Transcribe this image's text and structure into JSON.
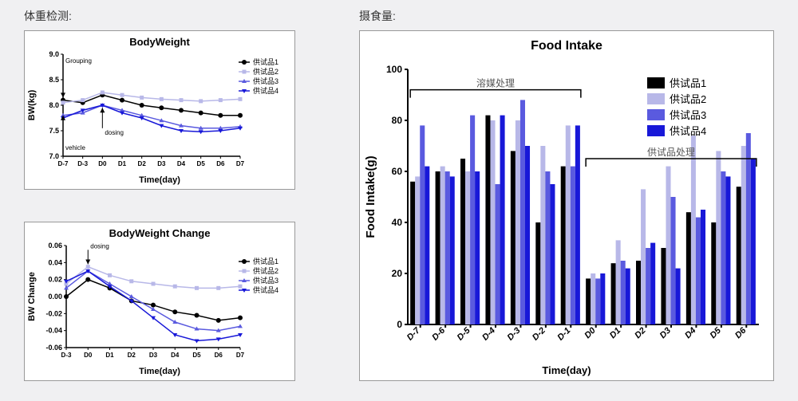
{
  "left_title": "体重检测:",
  "right_title": "摄食量:",
  "colors": {
    "s1": "#000000",
    "s2": "#b8b8e8",
    "s3": "#5a5adf",
    "s4": "#1818d8",
    "axis": "#000000",
    "grid": "#ffffff"
  },
  "legend_labels": [
    "供试品1",
    "供试品2",
    "供试品3",
    "供试品4"
  ],
  "chart1": {
    "title": "BodyWeight",
    "xlabel": "Time(day)",
    "ylabel": "BW(kg)",
    "x_ticks": [
      "D-7",
      "D-3",
      "D0",
      "D1",
      "D2",
      "D3",
      "D4",
      "D5",
      "D6",
      "D7"
    ],
    "y_min": 7.0,
    "y_max": 9.0,
    "y_step": 0.5,
    "series": {
      "s1": [
        8.1,
        8.05,
        8.2,
        8.1,
        8.0,
        7.95,
        7.9,
        7.85,
        7.8,
        7.8
      ],
      "s2": [
        8.05,
        8.1,
        8.25,
        8.2,
        8.15,
        8.12,
        8.1,
        8.08,
        8.1,
        8.12
      ],
      "s3": [
        7.8,
        7.85,
        8.0,
        7.9,
        7.8,
        7.7,
        7.6,
        7.55,
        7.55,
        7.58
      ],
      "s4": [
        7.75,
        7.9,
        8.0,
        7.85,
        7.75,
        7.6,
        7.5,
        7.48,
        7.5,
        7.55
      ]
    },
    "annotations": [
      {
        "text": "Grouping",
        "x_idx": 0,
        "from_y": 8.8,
        "to_y": 8.15
      },
      {
        "text": "vehicle",
        "x_idx": 0,
        "from_y": 7.25,
        "to_y": 7.8
      },
      {
        "text": "dosing",
        "x_idx": 2,
        "from_y": 7.55,
        "to_y": 7.95
      }
    ]
  },
  "chart2": {
    "title": "BodyWeight Change",
    "xlabel": "Time(day)",
    "ylabel": "BW Change",
    "x_ticks": [
      "D-3",
      "D0",
      "D1",
      "D2",
      "D3",
      "D4",
      "D5",
      "D6",
      "D7"
    ],
    "y_min": -0.06,
    "y_max": 0.06,
    "y_step": 0.02,
    "series": {
      "s1": [
        0.0,
        0.02,
        0.01,
        -0.005,
        -0.01,
        -0.018,
        -0.022,
        -0.028,
        -0.025
      ],
      "s2": [
        0.015,
        0.035,
        0.025,
        0.018,
        0.015,
        0.012,
        0.01,
        0.01,
        0.012
      ],
      "s3": [
        0.01,
        0.03,
        0.015,
        0.0,
        -0.015,
        -0.03,
        -0.038,
        -0.04,
        -0.035
      ],
      "s4": [
        0.018,
        0.03,
        0.012,
        -0.005,
        -0.025,
        -0.045,
        -0.052,
        -0.05,
        -0.045
      ]
    },
    "annotations": [
      {
        "text": "dosing",
        "x_idx": 1,
        "from_y": 0.055,
        "to_y": 0.038
      }
    ]
  },
  "chart3": {
    "title": "Food Intake",
    "xlabel": "Time(day)",
    "ylabel": "Food Intake(g)",
    "x_ticks": [
      "D-7",
      "D-6",
      "D-5",
      "D-4",
      "D-3",
      "D-2",
      "D-1",
      "D0",
      "D1",
      "D2",
      "D3",
      "D4",
      "D5",
      "D6"
    ],
    "y_min": 0,
    "y_max": 100,
    "y_step": 20,
    "series": {
      "s1": [
        56,
        60,
        65,
        82,
        68,
        40,
        62,
        18,
        24,
        25,
        30,
        44,
        40,
        54
      ],
      "s2": [
        58,
        62,
        60,
        80,
        80,
        70,
        78,
        20,
        33,
        53,
        62,
        74,
        68,
        70
      ],
      "s3": [
        78,
        60,
        82,
        55,
        88,
        60,
        62,
        18,
        25,
        30,
        50,
        42,
        60,
        75
      ],
      "s4": [
        62,
        58,
        60,
        82,
        70,
        55,
        78,
        20,
        22,
        32,
        22,
        45,
        58,
        65
      ]
    },
    "brackets": [
      {
        "label": "溶媒处理",
        "from_idx": 0,
        "to_idx": 6,
        "y": 92
      },
      {
        "label": "供试品处理",
        "from_idx": 7,
        "to_idx": 13,
        "y": 65
      }
    ]
  }
}
